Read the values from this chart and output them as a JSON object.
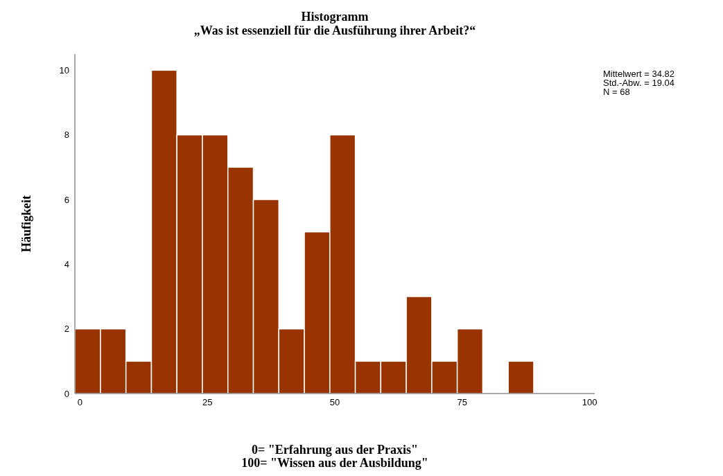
{
  "chart_data": {
    "type": "histogram",
    "title": "Histogramm",
    "subtitle": "„Was ist essenziell für die Ausführung ihrer Arbeit?“",
    "xlabel": "0= \"Erfahrung aus der Praxis\"\n100= \"Wissen aus der Ausbildung\"",
    "ylabel": "Häufigkeit",
    "bins": [
      -1,
      4,
      9,
      14,
      19,
      24,
      29,
      34,
      39,
      44,
      49,
      54,
      59,
      64,
      69,
      74,
      79,
      84,
      89
    ],
    "values": [
      2,
      2,
      1,
      10,
      8,
      8,
      7,
      6,
      2,
      5,
      8,
      1,
      1,
      3,
      1,
      2,
      0,
      1
    ],
    "color": "#993300",
    "xlim": [
      -1,
      101
    ],
    "xticks": [
      0,
      25,
      50,
      75,
      100
    ],
    "ylim": [
      0,
      10.5
    ],
    "yticks": [
      0,
      2,
      4,
      6,
      8,
      10
    ],
    "grid": false,
    "annotations": [
      "Mittelwert = 34.82",
      "Std.-Abw. = 19.04",
      "N = 68"
    ]
  }
}
